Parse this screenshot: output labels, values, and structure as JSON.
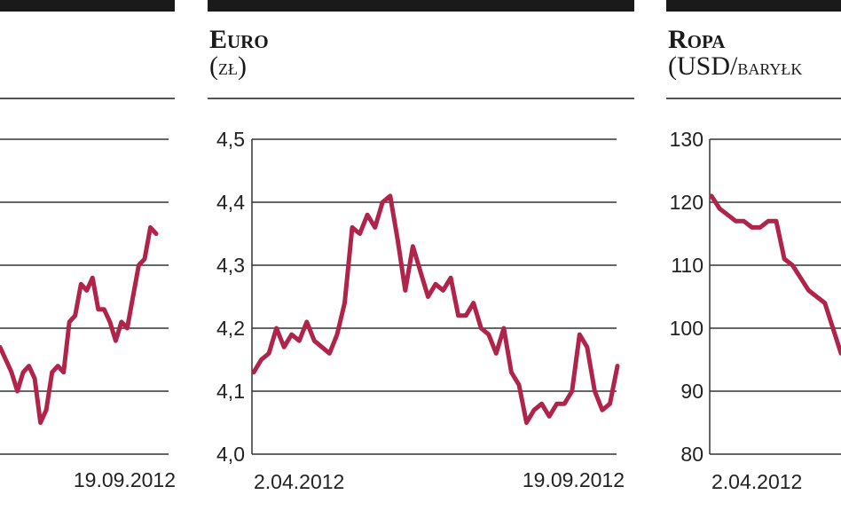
{
  "panels": [
    {
      "title": "",
      "unit": "",
      "unit_small": ""
    },
    {
      "title": "Euro",
      "unit": "(",
      "unit_small": "zł",
      "unit_end": ")"
    },
    {
      "title": "Ropa",
      "unit": "(USD/",
      "unit_small": "baryłk",
      "unit_end": ""
    }
  ],
  "colors": {
    "line": "#b0234a",
    "grid": "#333333",
    "bar": "#1a1a1a"
  },
  "chart_data": [
    {
      "type": "line",
      "title": "",
      "ylim": [
        null,
        null
      ],
      "x_labels": {
        "end": "19.09.2012"
      },
      "series": [
        {
          "values": [
            4.22,
            4.2,
            4.18,
            4.15,
            4.18,
            4.19,
            4.17,
            4.1,
            4.12,
            4.18,
            4.19,
            4.18,
            4.26,
            4.27,
            4.32,
            4.31,
            4.33,
            4.28,
            4.28,
            4.26,
            4.23,
            4.26,
            4.25,
            4.3,
            4.35,
            4.36,
            4.41,
            4.4
          ]
        }
      ]
    },
    {
      "type": "line",
      "title": "Euro",
      "yticks": [
        "4,5",
        "4,4",
        "4,3",
        "4,2",
        "4,1",
        "4,0"
      ],
      "ylim": [
        4.0,
        4.5
      ],
      "x_labels": {
        "start": "2.04.2012",
        "end": "19.09.2012"
      },
      "series": [
        {
          "values": [
            4.13,
            4.15,
            4.16,
            4.2,
            4.17,
            4.19,
            4.18,
            4.21,
            4.18,
            4.17,
            4.16,
            4.19,
            4.24,
            4.36,
            4.35,
            4.38,
            4.36,
            4.4,
            4.41,
            4.34,
            4.26,
            4.33,
            4.29,
            4.25,
            4.27,
            4.26,
            4.28,
            4.22,
            4.22,
            4.24,
            4.2,
            4.19,
            4.16,
            4.2,
            4.13,
            4.11,
            4.05,
            4.07,
            4.08,
            4.06,
            4.08,
            4.08,
            4.1,
            4.19,
            4.17,
            4.1,
            4.07,
            4.08,
            4.14
          ]
        }
      ]
    },
    {
      "type": "line",
      "title": "Ropa",
      "yticks": [
        "130",
        "120",
        "110",
        "100",
        "90",
        "80"
      ],
      "ylim": [
        80,
        130
      ],
      "x_labels": {
        "start": "2.04.2012"
      },
      "series": [
        {
          "values": [
            121,
            119,
            118,
            117,
            117,
            116,
            116,
            117,
            117,
            111,
            110,
            108,
            106,
            105,
            104,
            100,
            96
          ]
        }
      ]
    }
  ]
}
